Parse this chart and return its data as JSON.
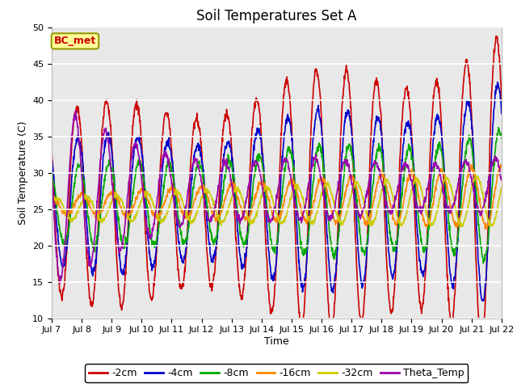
{
  "title": "Soil Temperatures Set A",
  "xlabel": "Time",
  "ylabel": "Soil Temperature (C)",
  "ylim": [
    10,
    50
  ],
  "x_tick_labels": [
    "Jul 7",
    "Jul 8",
    "Jul 9",
    "Jul 10",
    "Jul 11",
    "Jul 12",
    "Jul 13",
    "Jul 14",
    "Jul 15",
    "Jul 16",
    "Jul 17",
    "Jul 18",
    "Jul 19",
    "Jul 20",
    "Jul 21",
    "Jul 22"
  ],
  "series": [
    {
      "label": "-2cm",
      "color": "#cc0000",
      "lw": 1.2
    },
    {
      "label": "-4cm",
      "color": "#0000cc",
      "lw": 1.2
    },
    {
      "label": "-8cm",
      "color": "#00aa00",
      "lw": 1.2
    },
    {
      "label": "-16cm",
      "color": "#ff8800",
      "lw": 1.2
    },
    {
      "label": "-32cm",
      "color": "#cccc00",
      "lw": 1.2
    },
    {
      "label": "Theta_Temp",
      "color": "#9900aa",
      "lw": 1.2
    }
  ],
  "annotation_text": "BC_met",
  "annotation_color": "#cc0000",
  "annotation_bg": "#ffff99",
  "annotation_border": "#999900",
  "bg_color": "#e8e8e8",
  "title_fontsize": 12,
  "label_fontsize": 9,
  "tick_fontsize": 8,
  "legend_fontsize": 9
}
